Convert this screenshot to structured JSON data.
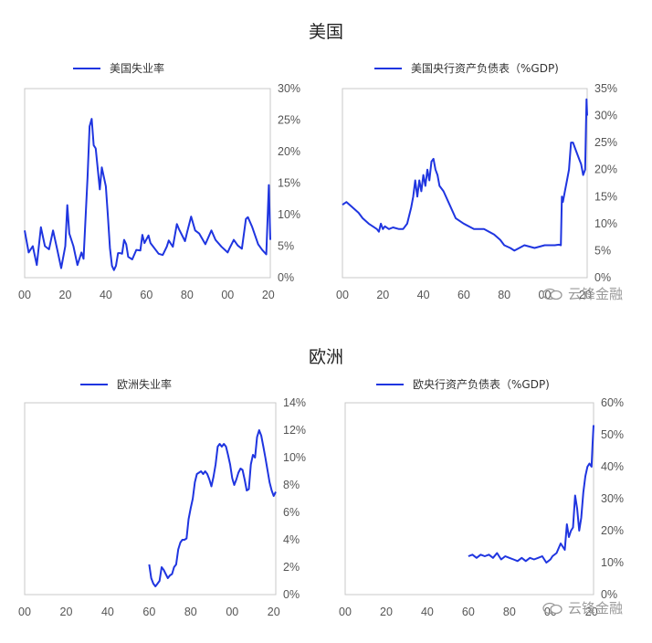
{
  "sections": [
    {
      "title": "美国"
    },
    {
      "title": "欧洲"
    }
  ],
  "watermark": {
    "text": "云锋金融"
  },
  "colors": {
    "line": "#1f35e0",
    "axis": "#c8c8c8",
    "tick_text": "#555555"
  },
  "chart_data": [
    {
      "type": "line",
      "title": "",
      "series": [
        {
          "name": "美国失业率",
          "x": [
            1900,
            1902,
            1904,
            1906,
            1908,
            1910,
            1912,
            1914,
            1916,
            1918,
            1920,
            1921,
            1922,
            1924,
            1926,
            1928,
            1929,
            1931,
            1932,
            1933,
            1934,
            1935,
            1937,
            1938,
            1940,
            1941,
            1942,
            1943,
            1944,
            1945,
            1946,
            1947,
            1948,
            1949,
            1950,
            1951,
            1953,
            1955,
            1957,
            1958,
            1959,
            1961,
            1962,
            1966,
            1968,
            1970,
            1971,
            1973,
            1975,
            1976,
            1979,
            1980,
            1982,
            1984,
            1986,
            1989,
            1992,
            1994,
            1997,
            2000,
            2001,
            2003,
            2005,
            2007,
            2009,
            2010,
            2012,
            2015,
            2017,
            2019,
            2020.3,
            2020.6,
            2021
          ],
          "values": [
            7.5,
            4,
            5,
            2,
            8,
            5,
            4.5,
            7.5,
            4.5,
            1.5,
            5,
            11.5,
            7,
            5,
            2,
            4,
            3,
            16,
            24,
            25.2,
            21,
            20.5,
            14,
            17.5,
            14.5,
            9.9,
            4.7,
            1.9,
            1.2,
            1.9,
            3.9,
            3.9,
            3.8,
            6,
            5.3,
            3.3,
            2.9,
            4.4,
            4.3,
            6.8,
            5.5,
            6.7,
            5.5,
            3.8,
            3.6,
            4.9,
            5.9,
            4.9,
            8.5,
            7.7,
            5.8,
            7.2,
            9.7,
            7.5,
            7,
            5.3,
            7.5,
            6,
            4.9,
            4,
            4.7,
            6,
            5.1,
            4.6,
            9.3,
            9.6,
            8.1,
            5.3,
            4.4,
            3.7,
            14.7,
            11,
            6
          ]
        }
      ],
      "xlim": [
        1900,
        2021
      ],
      "ylim": [
        0,
        30
      ],
      "xticks": [
        "00",
        "20",
        "40",
        "60",
        "80",
        "00",
        "20"
      ],
      "yticks": [
        "0%",
        "5%",
        "10%",
        "15%",
        "20%",
        "25%",
        "30%"
      ]
    },
    {
      "type": "line",
      "title": "",
      "series": [
        {
          "name": "美国央行资产负债表（%GDP)",
          "x": [
            1900,
            1902,
            1905,
            1908,
            1910,
            1913,
            1915,
            1917,
            1918,
            1919,
            1920,
            1921,
            1923,
            1925,
            1928,
            1930,
            1932,
            1934,
            1935,
            1936,
            1937,
            1938,
            1939,
            1940,
            1941,
            1942,
            1943,
            1944,
            1945,
            1946,
            1947,
            1948,
            1950,
            1953,
            1956,
            1960,
            1965,
            1970,
            1975,
            1978,
            1980,
            1983,
            1985,
            1990,
            1995,
            2000,
            2005,
            2007,
            2008,
            2008.5,
            2009,
            2010,
            2011,
            2012,
            2013,
            2014,
            2015,
            2016,
            2017,
            2018,
            2019,
            2020,
            2020.4,
            2020.7,
            2021
          ],
          "values": [
            13.5,
            14,
            13,
            12,
            11,
            10,
            9.5,
            9,
            8.5,
            10,
            9,
            9.5,
            9,
            9.3,
            9,
            9,
            10,
            13,
            15,
            18,
            15,
            18,
            16,
            19,
            17,
            20,
            18,
            21.5,
            22,
            20,
            19,
            17,
            16,
            13.5,
            11,
            10,
            9,
            9,
            8,
            7,
            6,
            5.5,
            5,
            6,
            5.5,
            6,
            6,
            6.1,
            6,
            15,
            14,
            16,
            18,
            20,
            25,
            25,
            24,
            23,
            22,
            21,
            19,
            20,
            28,
            33,
            30
          ]
        }
      ],
      "xlim": [
        1900,
        2021
      ],
      "ylim": [
        0,
        35
      ],
      "xticks": [
        "00",
        "20",
        "40",
        "60",
        "80",
        "00",
        "20"
      ],
      "yticks": [
        "0%",
        "5%",
        "10%",
        "15%",
        "20%",
        "25%",
        "30%",
        "35%"
      ]
    },
    {
      "type": "line",
      "title": "",
      "series": [
        {
          "name": "欧洲失业率",
          "x": [
            1960,
            1961,
            1962,
            1963,
            1964,
            1965,
            1966,
            1967,
            1968,
            1969,
            1970,
            1971,
            1972,
            1973,
            1974,
            1975,
            1976,
            1977,
            1978,
            1979,
            1980,
            1981,
            1982,
            1983,
            1984,
            1985,
            1986,
            1987,
            1988,
            1989,
            1990,
            1991,
            1992,
            1993,
            1994,
            1995,
            1996,
            1997,
            1998,
            1999,
            2000,
            2001,
            2002,
            2003,
            2004,
            2005,
            2006,
            2007,
            2008,
            2009,
            2010,
            2011,
            2012,
            2013,
            2014,
            2015,
            2016,
            2017,
            2018,
            2019,
            2020,
            2021
          ],
          "values": [
            2.2,
            1.2,
            0.8,
            0.6,
            0.8,
            1,
            2,
            1.8,
            1.5,
            1.2,
            1.4,
            1.5,
            2,
            2.2,
            3.3,
            3.8,
            4,
            4,
            4.1,
            5.5,
            6.3,
            7,
            8.2,
            8.8,
            8.9,
            9,
            8.8,
            9,
            8.8,
            8.4,
            7.9,
            8.6,
            9.5,
            10.8,
            11,
            10.8,
            11,
            10.8,
            10.2,
            9.5,
            8.5,
            8,
            8.4,
            8.9,
            9.2,
            9.1,
            8.4,
            7.6,
            7.7,
            9.5,
            10.2,
            10,
            11.5,
            12,
            11.6,
            10.8,
            10,
            9.1,
            8.2,
            7.6,
            7.2,
            7.5
          ]
        }
      ],
      "xlim": [
        1900,
        2021
      ],
      "ylim": [
        0,
        14
      ],
      "xticks": [
        "00",
        "20",
        "40",
        "60",
        "80",
        "00",
        "20"
      ],
      "yticks": [
        "0%",
        "2%",
        "4%",
        "6%",
        "8%",
        "10%",
        "12%",
        "14%"
      ]
    },
    {
      "type": "line",
      "title": "",
      "series": [
        {
          "name": "欧央行资产负债表（%GDP)",
          "x": [
            1960,
            1962,
            1964,
            1966,
            1968,
            1970,
            1972,
            1974,
            1976,
            1978,
            1980,
            1982,
            1984,
            1986,
            1988,
            1990,
            1992,
            1994,
            1996,
            1998,
            1999,
            2000,
            2001,
            2003,
            2005,
            2007,
            2008,
            2009,
            2010,
            2011,
            2012,
            2013,
            2014,
            2015,
            2016,
            2017,
            2018,
            2019,
            2020,
            2020.5,
            2021
          ],
          "values": [
            12,
            12.5,
            11.5,
            12.5,
            12,
            12.5,
            11.5,
            13,
            11,
            12,
            11.5,
            11,
            10.5,
            11.5,
            10.5,
            11.5,
            11,
            11.5,
            12,
            10,
            10.5,
            11,
            12,
            13,
            16,
            14,
            22,
            18,
            20,
            21,
            31,
            27,
            20,
            24,
            32,
            37,
            40,
            41,
            40,
            47,
            53
          ]
        }
      ],
      "xlim": [
        1900,
        2021
      ],
      "ylim": [
        0,
        60
      ],
      "xticks": [
        "00",
        "20",
        "40",
        "60",
        "80",
        "00",
        "20"
      ],
      "yticks": [
        "0%",
        "10%",
        "20%",
        "30%",
        "40%",
        "50%",
        "60%"
      ]
    }
  ]
}
